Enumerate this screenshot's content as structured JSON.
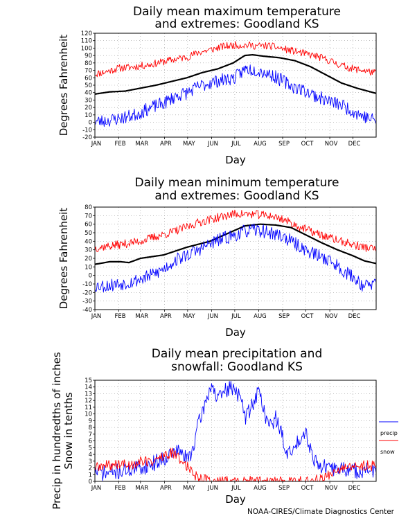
{
  "credit": "NOAA-CIRES/Climate Diagnostics Center",
  "colors": {
    "mean": "#000000",
    "high": "#ff0000",
    "low": "#0000ff",
    "grid": "#9a9a9a"
  },
  "chart_data": [
    {
      "type": "line",
      "title": [
        "Daily mean maximum temperature",
        "and extremes: Goodland KS"
      ],
      "xlabel": "Day",
      "ylabel": "Degrees Fahrenheit",
      "ylim": [
        -20,
        120
      ],
      "yticks": [
        "-20",
        "-10",
        "0",
        "10",
        "20",
        "30",
        "40",
        "50",
        "60",
        "70",
        "80",
        "90",
        "100",
        "110",
        "120"
      ],
      "months": [
        "JAN",
        "FEB",
        "MAR",
        "APR",
        "MAY",
        "JUN",
        "JUL",
        "AUG",
        "SEP",
        "OCT",
        "NOV",
        "DEC"
      ],
      "grid": true,
      "series": [
        {
          "role": "record-high",
          "color": "#ff0000",
          "noise": 5,
          "seed": 11,
          "x": [
            1,
            15,
            32,
            46,
            60,
            74,
            91,
            105,
            121,
            135,
            152,
            166,
            182,
            196,
            213,
            227,
            244,
            258,
            274,
            288,
            305,
            319,
            335,
            349,
            365
          ],
          "y": [
            65,
            68,
            73,
            74,
            76,
            78,
            82,
            85,
            88,
            94,
            98,
            102,
            104,
            104,
            103,
            103,
            99,
            96,
            92,
            89,
            83,
            77,
            72,
            70,
            66
          ]
        },
        {
          "role": "mean",
          "color": "#000000",
          "noise": 0,
          "seed": 0,
          "x": [
            1,
            20,
            40,
            60,
            80,
            100,
            120,
            140,
            160,
            180,
            195,
            205,
            220,
            240,
            260,
            280,
            300,
            320,
            340,
            365
          ],
          "y": [
            38,
            41,
            42,
            46,
            50,
            55,
            60,
            67,
            72,
            80,
            90,
            91,
            89,
            87,
            83,
            75,
            64,
            53,
            46,
            39
          ]
        },
        {
          "role": "record-low",
          "color": "#0000ff",
          "noise": 9,
          "seed": 23,
          "x": [
            1,
            15,
            32,
            46,
            60,
            74,
            91,
            105,
            121,
            135,
            152,
            166,
            182,
            196,
            213,
            227,
            244,
            258,
            274,
            288,
            305,
            319,
            335,
            349,
            365
          ],
          "y": [
            1,
            2,
            5,
            8,
            13,
            20,
            26,
            35,
            40,
            48,
            54,
            57,
            60,
            72,
            70,
            65,
            56,
            48,
            42,
            35,
            28,
            24,
            15,
            8,
            2
          ]
        }
      ]
    },
    {
      "type": "line",
      "title": [
        "Daily mean minimum temperature",
        "and extremes: Goodland KS"
      ],
      "xlabel": "Day",
      "ylabel": "Degrees Fahrenheit",
      "ylim": [
        -40,
        80
      ],
      "yticks": [
        "-40",
        "-30",
        "-20",
        "-10",
        "0",
        "10",
        "20",
        "30",
        "40",
        "50",
        "60",
        "70",
        "80"
      ],
      "months": [
        "JAN",
        "FEB",
        "MAR",
        "APR",
        "MAY",
        "JUN",
        "JUL",
        "AUG",
        "SEP",
        "OCT",
        "NOV",
        "DEC"
      ],
      "grid": true,
      "series": [
        {
          "role": "record-high",
          "color": "#ff0000",
          "noise": 5,
          "seed": 37,
          "x": [
            1,
            15,
            32,
            46,
            60,
            74,
            91,
            105,
            121,
            135,
            152,
            166,
            182,
            196,
            213,
            227,
            244,
            258,
            274,
            288,
            305,
            319,
            335,
            349,
            365
          ],
          "y": [
            32,
            34,
            36,
            38,
            40,
            44,
            48,
            52,
            57,
            62,
            66,
            69,
            72,
            72,
            71,
            70,
            66,
            60,
            54,
            49,
            44,
            40,
            36,
            33,
            31
          ]
        },
        {
          "role": "mean",
          "color": "#000000",
          "noise": 0,
          "seed": 0,
          "x": [
            1,
            20,
            35,
            45,
            60,
            90,
            120,
            150,
            175,
            195,
            215,
            235,
            255,
            275,
            295,
            315,
            335,
            350,
            365
          ],
          "y": [
            13,
            16,
            16,
            15,
            20,
            24,
            33,
            40,
            50,
            58,
            60,
            59,
            56,
            47,
            38,
            30,
            23,
            17,
            14
          ]
        },
        {
          "role": "record-low",
          "color": "#0000ff",
          "noise": 8,
          "seed": 53,
          "x": [
            1,
            15,
            32,
            46,
            60,
            74,
            91,
            105,
            121,
            135,
            152,
            166,
            182,
            196,
            213,
            227,
            244,
            258,
            274,
            288,
            305,
            319,
            335,
            349,
            365
          ],
          "y": [
            -12,
            -12,
            -10,
            -8,
            -4,
            0,
            8,
            18,
            24,
            30,
            38,
            43,
            47,
            52,
            53,
            50,
            46,
            38,
            30,
            24,
            18,
            8,
            -2,
            -12,
            -10
          ]
        }
      ]
    },
    {
      "type": "line",
      "title": [
        "Daily mean precipitation and",
        "snowfall: Goodland KS"
      ],
      "xlabel": "Day",
      "ylabel": [
        "Precip in hundredths of inches",
        "Snow in tenths"
      ],
      "ylim": [
        0,
        15
      ],
      "yticks": [
        "0",
        "1",
        "2",
        "3",
        "4",
        "5",
        "6",
        "7",
        "8",
        "9",
        "10",
        "11",
        "12",
        "13",
        "14",
        "15"
      ],
      "months": [
        "JAN",
        "FEB",
        "MAR",
        "APR",
        "MAY",
        "JUN",
        "JUL",
        "AUG",
        "SEP",
        "OCT",
        "NOV",
        "DEC"
      ],
      "grid": true,
      "legend": {
        "position": "right",
        "entries": [
          "precip",
          "snow"
        ]
      },
      "series": [
        {
          "name": "precip",
          "color": "#0000ff",
          "noise": 1.2,
          "seed": 71,
          "x": [
            1,
            15,
            32,
            46,
            60,
            74,
            91,
            100,
            110,
            121,
            128,
            135,
            145,
            152,
            160,
            170,
            182,
            190,
            196,
            205,
            213,
            220,
            227,
            235,
            244,
            250,
            258,
            266,
            274,
            282,
            290,
            300,
            305,
            319,
            335,
            349,
            365
          ],
          "y": [
            1.5,
            1.2,
            1.5,
            1.8,
            2.0,
            2.5,
            3.5,
            4.2,
            4.5,
            3.2,
            5.0,
            8.5,
            12.0,
            14.5,
            12.0,
            13.5,
            14.0,
            12.0,
            9.5,
            11.5,
            13.5,
            10.5,
            8.0,
            9.5,
            6.5,
            4.0,
            4.5,
            6.5,
            7.5,
            4.0,
            2.5,
            2.0,
            1.8,
            2.0,
            1.5,
            1.7,
            1.5
          ]
        },
        {
          "name": "snow",
          "color": "#ff0000",
          "noise": 0.8,
          "seed": 89,
          "x": [
            1,
            15,
            32,
            46,
            60,
            74,
            91,
            100,
            110,
            121,
            130,
            140,
            150,
            160,
            280,
            290,
            300,
            310,
            320,
            335,
            349,
            365
          ],
          "y": [
            2.0,
            2.3,
            2.6,
            2.4,
            3.0,
            2.9,
            3.8,
            4.2,
            3.5,
            2.2,
            1.0,
            0.5,
            0.1,
            0.0,
            0.0,
            0.2,
            0.8,
            1.5,
            1.8,
            2.1,
            2.4,
            2.3
          ]
        }
      ]
    }
  ]
}
